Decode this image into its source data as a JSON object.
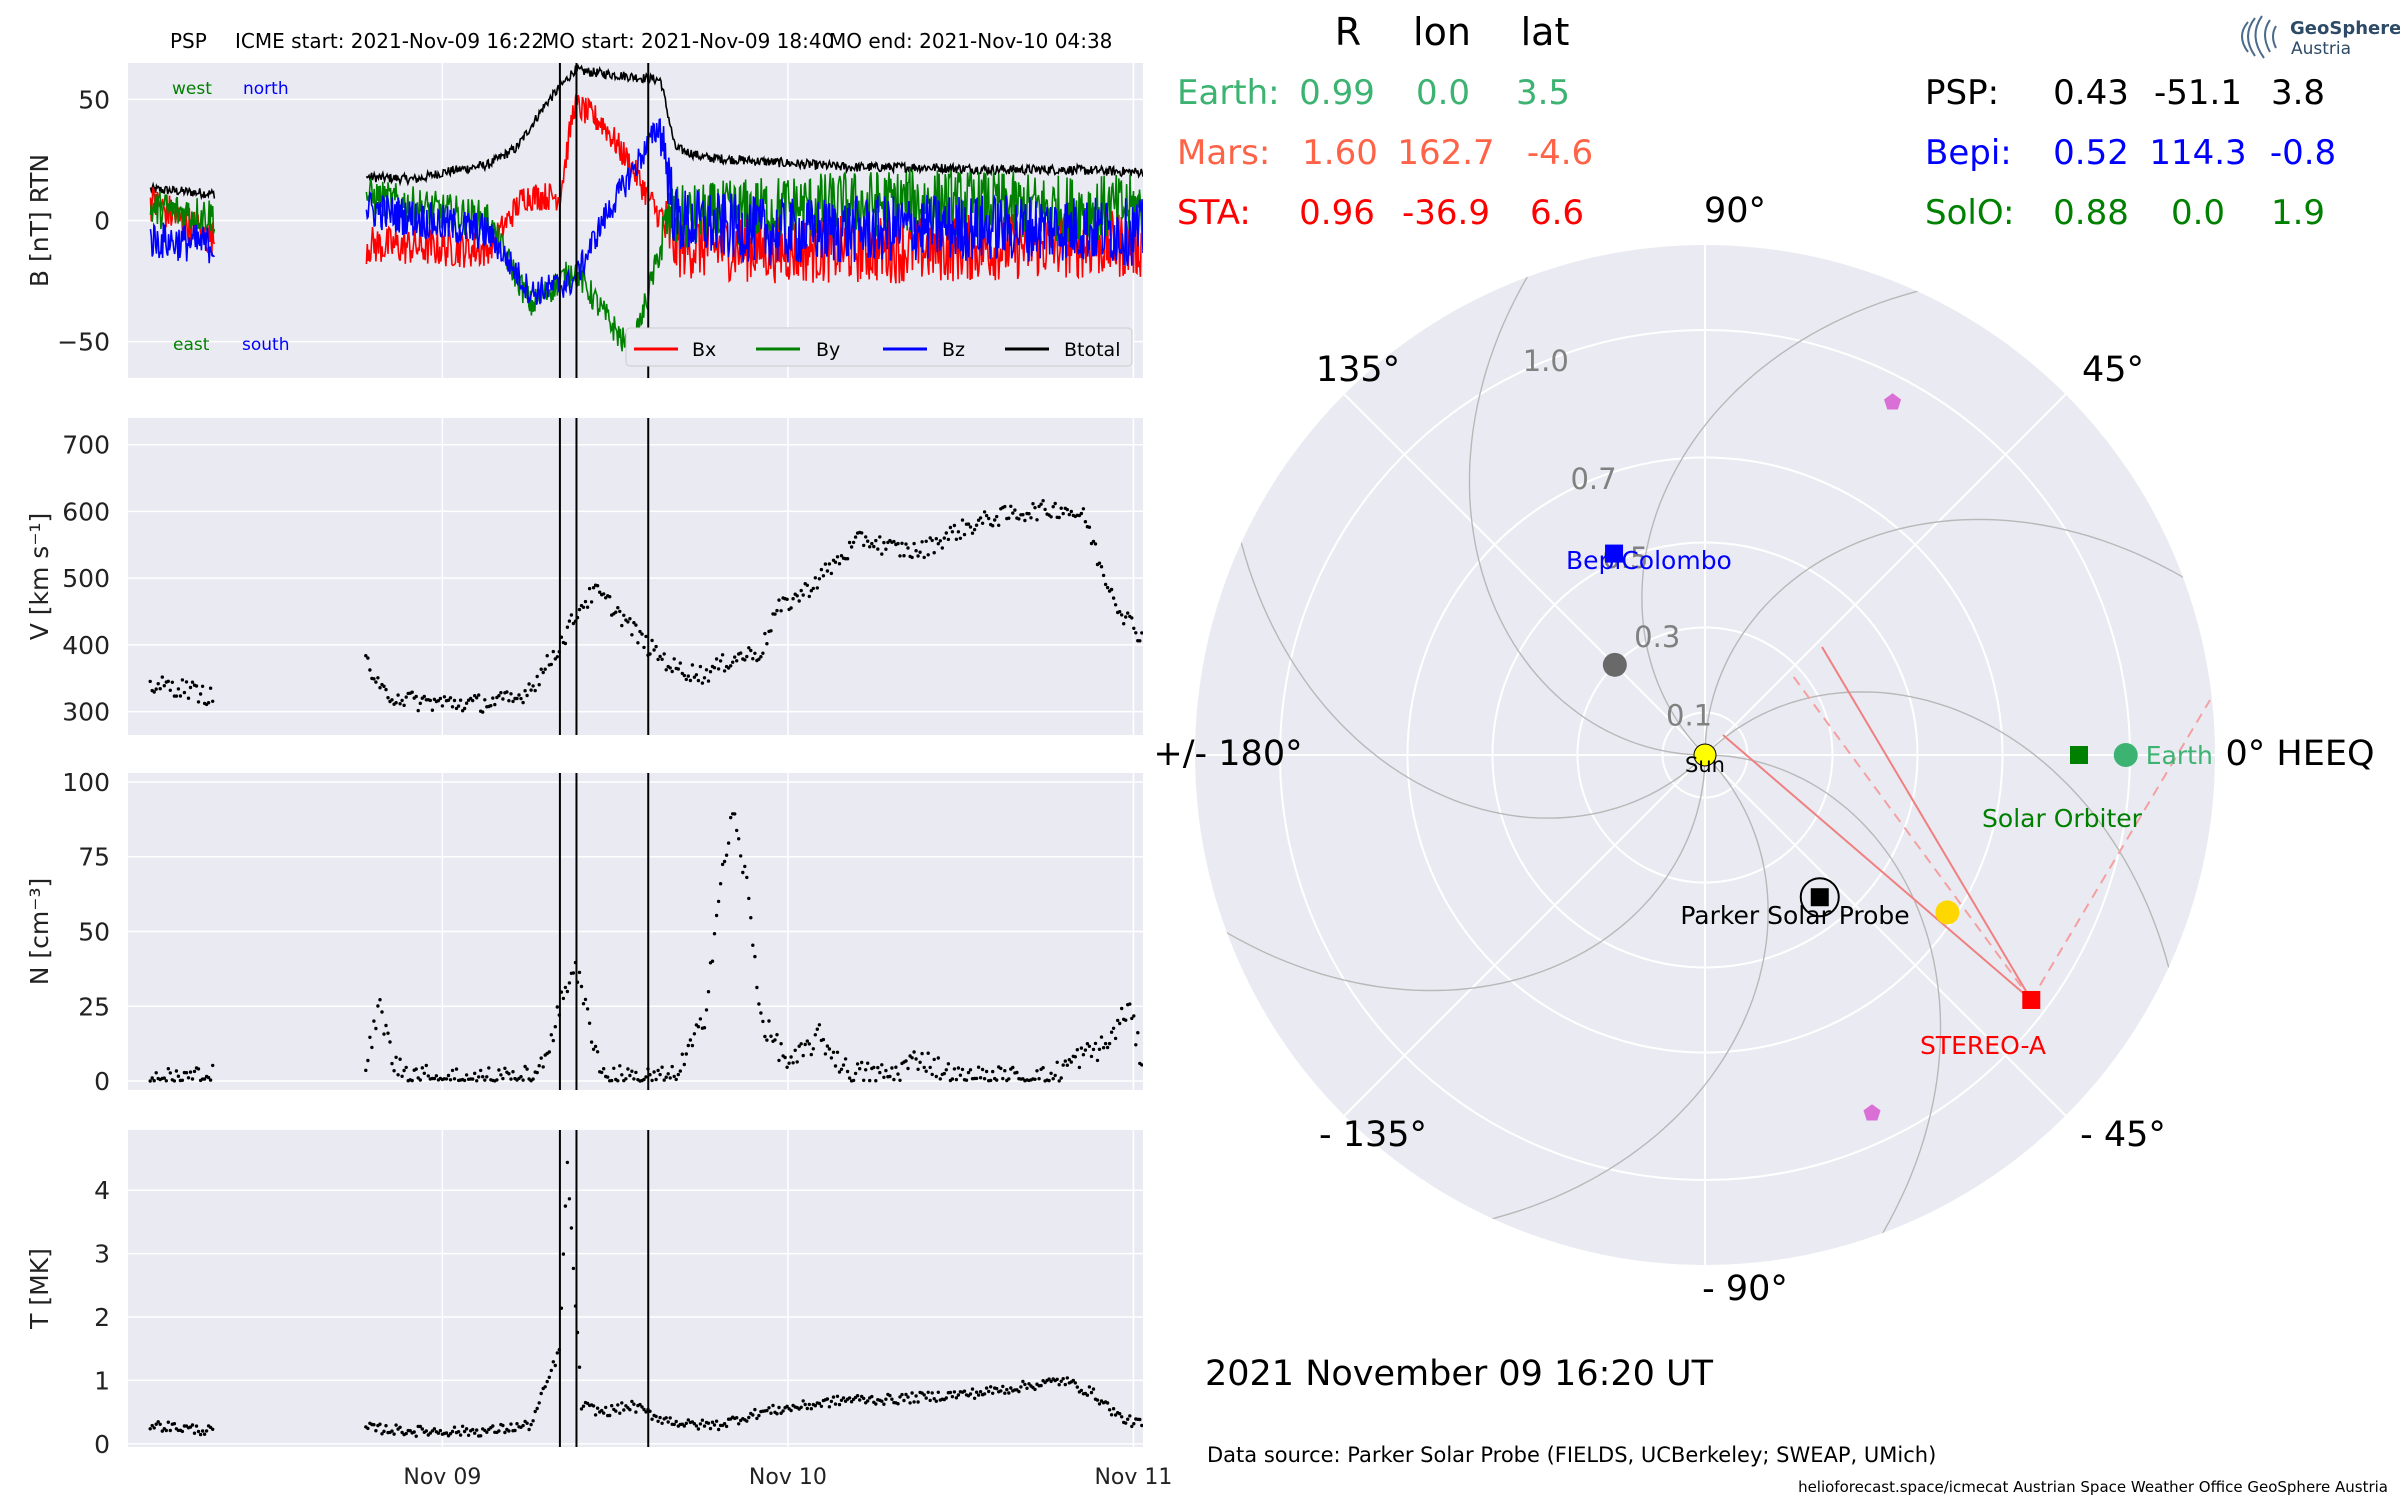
{
  "header": {
    "spacecraft": "PSP",
    "icme_start": "ICME start: 2021-Nov-09 16:22",
    "mo_start": "MO start: 2021-Nov-09 18:40",
    "mo_end": "MO end: 2021-Nov-10 04:38"
  },
  "colors": {
    "panel_bg": "#eaeaf2",
    "grid": "#ffffff",
    "bx": "#ff0000",
    "by": "#008000",
    "bz": "#0000ff",
    "btotal": "#000000",
    "earth": "#3cb371",
    "mars": "#ff6347",
    "sta": "#ff0000",
    "psp": "#000000",
    "bepi": "#0000ff",
    "solo": "#008000",
    "sun": "#ffff00",
    "pentagon": "#da70d6",
    "gray_planet": "#696969"
  },
  "field_labels": {
    "west": "west",
    "north": "north",
    "east": "east",
    "south": "south"
  },
  "chart_data": [
    {
      "type": "line",
      "ylabel": "B [nT] RTN",
      "ylim": [
        -65,
        65
      ],
      "yticks": [
        "50",
        "0",
        "−50"
      ],
      "ytick_values": [
        50,
        0,
        -50
      ],
      "x_hours_range": [
        -60,
        81
      ],
      "legend": [
        "Bx",
        "By",
        "Bz",
        "Btotal"
      ],
      "legend_position": "lower right",
      "series_summary": [
        {
          "name": "Btotal",
          "samples": [
            [
              -57,
              13
            ],
            [
              -48,
              11
            ],
            [
              -27,
              18
            ],
            [
              -20,
              17
            ],
            [
              -16,
              20
            ],
            [
              -10,
              23
            ],
            [
              -6,
              30
            ],
            [
              -2,
              48
            ],
            [
              2,
              62
            ],
            [
              8,
              60
            ],
            [
              14,
              58
            ],
            [
              16,
              30
            ],
            [
              20,
              26
            ],
            [
              30,
              24
            ],
            [
              40,
              22
            ],
            [
              50,
              22
            ],
            [
              60,
              21
            ],
            [
              70,
              21
            ],
            [
              80,
              20
            ]
          ]
        },
        {
          "name": "Bx",
          "samples": [
            [
              -57,
              8
            ],
            [
              -48,
              -8
            ],
            [
              -27,
              -10
            ],
            [
              -10,
              -12
            ],
            [
              -5,
              10
            ],
            [
              0,
              10
            ],
            [
              2,
              48
            ],
            [
              6,
              40
            ],
            [
              10,
              22
            ],
            [
              16,
              -10
            ],
            [
              30,
              -12
            ],
            [
              50,
              -12
            ],
            [
              70,
              -10
            ],
            [
              80,
              -10
            ]
          ]
        },
        {
          "name": "By",
          "samples": [
            [
              -57,
              5
            ],
            [
              -48,
              2
            ],
            [
              -27,
              10
            ],
            [
              -10,
              0
            ],
            [
              -4,
              -35
            ],
            [
              2,
              -20
            ],
            [
              6,
              -38
            ],
            [
              10,
              -55
            ],
            [
              15,
              0
            ],
            [
              30,
              5
            ],
            [
              50,
              8
            ],
            [
              70,
              5
            ],
            [
              80,
              5
            ]
          ]
        },
        {
          "name": "Bz",
          "samples": [
            [
              -57,
              -8
            ],
            [
              -48,
              -10
            ],
            [
              -27,
              5
            ],
            [
              -10,
              -5
            ],
            [
              -4,
              -30
            ],
            [
              2,
              -25
            ],
            [
              6,
              0
            ],
            [
              10,
              20
            ],
            [
              14,
              40
            ],
            [
              16,
              0
            ],
            [
              30,
              -5
            ],
            [
              50,
              -3
            ],
            [
              70,
              -3
            ],
            [
              80,
              -5
            ]
          ]
        }
      ]
    },
    {
      "type": "scatter",
      "ylabel": "V [km s⁻¹]",
      "ylim": [
        265,
        740
      ],
      "yticks": [
        "700",
        "600",
        "500",
        "400",
        "300"
      ],
      "ytick_values": [
        700,
        600,
        500,
        400,
        300
      ],
      "samples": [
        [
          -57,
          340
        ],
        [
          -52,
          335
        ],
        [
          -48,
          320
        ],
        [
          -27,
          380
        ],
        [
          -25,
          330
        ],
        [
          -20,
          315
        ],
        [
          -12,
          312
        ],
        [
          -6,
          318
        ],
        [
          -3,
          350
        ],
        [
          0,
          400
        ],
        [
          3,
          460
        ],
        [
          5,
          480
        ],
        [
          8,
          450
        ],
        [
          12,
          400
        ],
        [
          16,
          365
        ],
        [
          20,
          355
        ],
        [
          24,
          380
        ],
        [
          28,
          390
        ],
        [
          30,
          450
        ],
        [
          34,
          480
        ],
        [
          38,
          520
        ],
        [
          42,
          560
        ],
        [
          46,
          545
        ],
        [
          50,
          540
        ],
        [
          55,
          570
        ],
        [
          60,
          590
        ],
        [
          65,
          600
        ],
        [
          70,
          605
        ],
        [
          73,
          590
        ],
        [
          75,
          520
        ],
        [
          78,
          450
        ],
        [
          81,
          410
        ]
      ]
    },
    {
      "type": "scatter",
      "ylabel": "N [cm⁻³]",
      "ylim": [
        -3,
        103
      ],
      "yticks": [
        "100",
        "75",
        "50",
        "25",
        "0"
      ],
      "ytick_values": [
        100,
        75,
        50,
        25,
        0
      ],
      "samples": [
        [
          -57,
          0
        ],
        [
          -48,
          2
        ],
        [
          -27,
          5
        ],
        [
          -25,
          25
        ],
        [
          -23,
          5
        ],
        [
          -18,
          1
        ],
        [
          -12,
          1
        ],
        [
          -3,
          1
        ],
        [
          2,
          40
        ],
        [
          4,
          20
        ],
        [
          6,
          2
        ],
        [
          10,
          1
        ],
        [
          16,
          1
        ],
        [
          20,
          20
        ],
        [
          22,
          60
        ],
        [
          24,
          90
        ],
        [
          26,
          65
        ],
        [
          28,
          20
        ],
        [
          32,
          5
        ],
        [
          36,
          15
        ],
        [
          40,
          3
        ],
        [
          46,
          2
        ],
        [
          50,
          8
        ],
        [
          55,
          1
        ],
        [
          62,
          1
        ],
        [
          68,
          1
        ],
        [
          72,
          8
        ],
        [
          76,
          12
        ],
        [
          79,
          25
        ],
        [
          81,
          5
        ]
      ]
    },
    {
      "type": "scatter",
      "ylabel": "T [MK]",
      "ylim": [
        -0.05,
        4.95
      ],
      "yticks": [
        "4",
        "3",
        "2",
        "1",
        "0"
      ],
      "ytick_values": [
        4,
        3,
        2,
        1,
        0
      ],
      "xticks": [
        "Nov 09",
        "Nov 10",
        "Nov 11"
      ],
      "xtick_hours": [
        -16.33,
        31.67,
        79.67
      ],
      "samples": [
        [
          -57,
          0.3
        ],
        [
          -48,
          0.2
        ],
        [
          -27,
          0.25
        ],
        [
          -20,
          0.2
        ],
        [
          -10,
          0.2
        ],
        [
          -4,
          0.3
        ],
        [
          0,
          1.5
        ],
        [
          1,
          4.5
        ],
        [
          3,
          0.6
        ],
        [
          6,
          0.5
        ],
        [
          10,
          0.6
        ],
        [
          14,
          0.4
        ],
        [
          18,
          0.3
        ],
        [
          22,
          0.3
        ],
        [
          28,
          0.5
        ],
        [
          34,
          0.6
        ],
        [
          40,
          0.7
        ],
        [
          46,
          0.7
        ],
        [
          52,
          0.75
        ],
        [
          58,
          0.8
        ],
        [
          64,
          0.9
        ],
        [
          70,
          1.0
        ],
        [
          74,
          0.8
        ],
        [
          78,
          0.4
        ],
        [
          81,
          0.3
        ]
      ]
    },
    {
      "type": "scatter",
      "projection": "polar",
      "title": "2021 November 09  16:20 UT",
      "rlabels": [
        "0.1",
        "0.3",
        "0.5",
        "0.7",
        "1.0"
      ],
      "angle_labels": [
        "0° HEEQ",
        "45°",
        "90°",
        "135°",
        "+/- 180°",
        "- 135°",
        "- 90°",
        "- 45°"
      ],
      "spiral_longitudes": [
        0,
        45,
        90,
        135,
        180,
        -135,
        -90,
        -45
      ],
      "objects": [
        {
          "name": "Sun",
          "r": 0.0,
          "lon": 0.0
        },
        {
          "name": "Earth",
          "r": 0.99,
          "lon": 0.0
        },
        {
          "name": "Solar Orbiter",
          "r": 0.88,
          "lon": 0.0
        },
        {
          "name": "Parker Solar Probe",
          "r": 0.43,
          "lon": -51.1
        },
        {
          "name": "BepiColombo",
          "r": 0.52,
          "lon": 114.3
        },
        {
          "name": "STEREO-A",
          "r": 0.96,
          "lon": -36.9
        },
        {
          "name": "planet-gray",
          "r": 0.3,
          "lon": 135
        },
        {
          "name": "planet-yellow",
          "r": 0.68,
          "lon": -33
        },
        {
          "name": "pentagon-upper",
          "r": 0.94,
          "lon": 62
        },
        {
          "name": "pentagon-lower",
          "r": 0.93,
          "lon": -65
        }
      ]
    }
  ],
  "position_table": {
    "headers": [
      "R",
      "lon",
      "lat"
    ],
    "left_rows": [
      {
        "name": "Earth:",
        "r": "0.99",
        "lon": "0.0",
        "lat": "3.5"
      },
      {
        "name": "Mars:",
        "r": "1.60",
        "lon": "162.7",
        "lat": "-4.6"
      },
      {
        "name": "STA:",
        "r": "0.96",
        "lon": "-36.9",
        "lat": "6.6"
      }
    ],
    "right_rows": [
      {
        "name": "PSP:",
        "r": "0.43",
        "lon": "-51.1",
        "lat": "3.8"
      },
      {
        "name": "Bepi:",
        "r": "0.52",
        "lon": "114.3",
        "lat": "-0.8"
      },
      {
        "name": "SolO:",
        "r": "0.88",
        "lon": "0.0",
        "lat": "1.9"
      }
    ]
  },
  "polar_labels": {
    "sun": "Sun",
    "earth": "Earth",
    "solo": "Solar Orbiter",
    "psp": "Parker Solar Probe",
    "bepi": "BepiColombo",
    "sta": "STEREO-A"
  },
  "footer": {
    "date": "2021 November 09  16:20 UT",
    "source": "Data source: Parker Solar Probe (FIELDS, UCBerkeley; SWEAP, UMich)",
    "credits": "helioforecast.space/icmecat   Austrian Space Weather Office   GeoSphere Austria"
  },
  "logo": {
    "line1": "GeoSphere",
    "line2": "Austria"
  },
  "event_hours": [
    0,
    2.3,
    12.27
  ]
}
